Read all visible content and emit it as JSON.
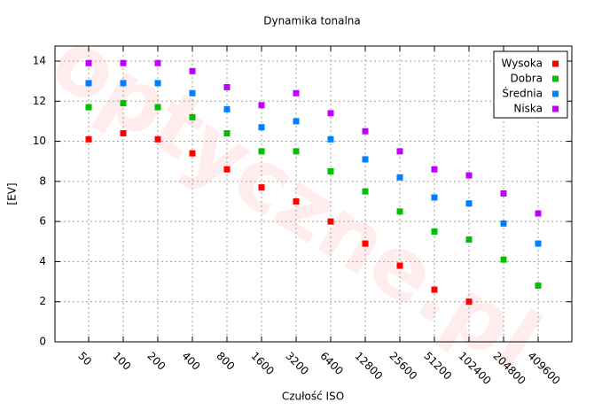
{
  "chart_data": {
    "type": "scatter",
    "title": "Dynamika tonalna",
    "watermark": "optyczne.pl",
    "x_label": "Czułość ISO",
    "y_label": "[EV]",
    "categories": [
      "50",
      "100",
      "200",
      "400",
      "800",
      "1600",
      "3200",
      "6400",
      "12800",
      "25600",
      "51200",
      "102400",
      "204800",
      "409600"
    ],
    "series": [
      {
        "name": "Wysoka",
        "color": "#ff0000",
        "values": [
          10.1,
          10.4,
          10.1,
          9.4,
          8.6,
          7.7,
          7.0,
          6.0,
          4.9,
          3.8,
          2.6,
          2.0,
          null,
          null
        ]
      },
      {
        "name": "Dobra",
        "color": "#00c000",
        "values": [
          11.7,
          11.9,
          11.7,
          11.2,
          10.4,
          9.5,
          9.5,
          8.5,
          7.5,
          6.5,
          5.5,
          5.1,
          4.1,
          2.8
        ]
      },
      {
        "name": "Średnia",
        "color": "#0080ff",
        "values": [
          12.9,
          12.9,
          12.9,
          12.4,
          11.6,
          10.7,
          11.0,
          10.1,
          9.1,
          8.2,
          7.2,
          6.9,
          5.9,
          4.9
        ]
      },
      {
        "name": "Niska",
        "color": "#c000ff",
        "values": [
          13.9,
          13.9,
          13.9,
          13.5,
          12.7,
          11.8,
          12.4,
          11.4,
          10.5,
          9.5,
          8.6,
          8.3,
          7.4,
          6.4
        ]
      }
    ],
    "ylim": [
      0,
      14.75
    ],
    "yticks": [
      0,
      2,
      4,
      6,
      8,
      10,
      12,
      14
    ],
    "grid": true,
    "legend": "top-right"
  }
}
